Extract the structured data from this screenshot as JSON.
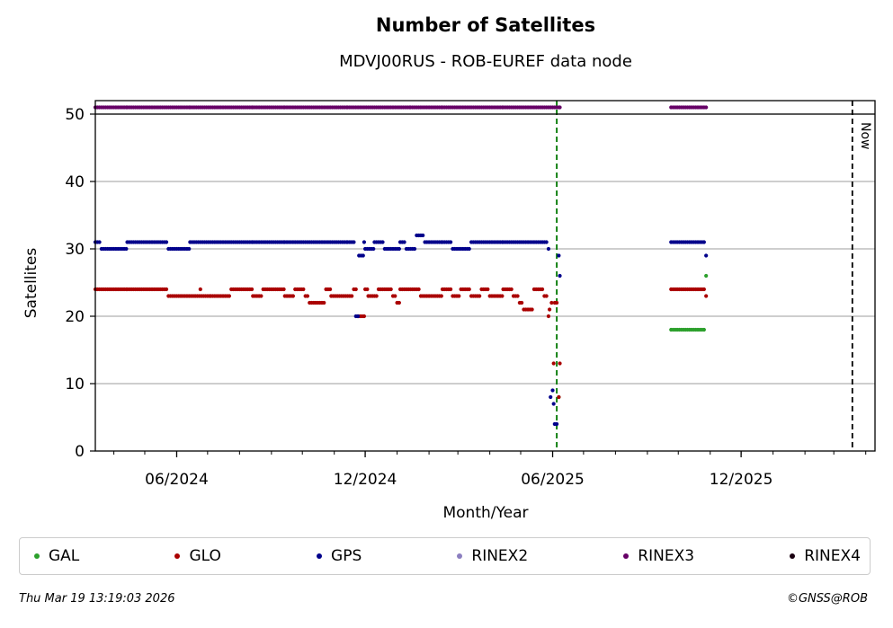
{
  "chart_data": {
    "type": "scatter",
    "title": "Number of Satellites",
    "subtitle": "MDVJ00RUS - ROB-EUREF data node",
    "xlabel": "Month/Year",
    "ylabel": "Satellites",
    "xlim": [
      "2024-03-14",
      "2026-04-10"
    ],
    "ylim": [
      0,
      52
    ],
    "yticks": [
      0,
      10,
      20,
      30,
      40,
      50
    ],
    "xticks": [
      {
        "date": "2024-06-01",
        "label": "06/2024"
      },
      {
        "date": "2024-12-01",
        "label": "12/2024"
      },
      {
        "date": "2025-06-01",
        "label": "06/2025"
      },
      {
        "date": "2025-12-01",
        "label": "12/2025"
      }
    ],
    "grid": "horizontal",
    "markers": [
      {
        "date": "2025-06-05",
        "label": "",
        "color": "#007700",
        "style": "dashed"
      },
      {
        "date": "2026-03-19",
        "label": "Now",
        "color": "#000000",
        "style": "dashed"
      }
    ],
    "series": [
      {
        "name": "GAL",
        "color": "#2ca02c",
        "points": [
          [
            "2025-06-07",
            8
          ],
          [
            "2025-09-24",
            18
          ],
          [
            "2025-10-28",
            26
          ]
        ]
      },
      {
        "name": "GLO",
        "color": "#aa0000",
        "points": [
          [
            "2024-03-14",
            24
          ],
          [
            "2024-04-14",
            24
          ],
          [
            "2024-05-14",
            24
          ],
          [
            "2024-05-24",
            23
          ],
          [
            "2024-06-24",
            24
          ],
          [
            "2024-06-25",
            23
          ],
          [
            "2024-07-04",
            23
          ],
          [
            "2024-07-24",
            24
          ],
          [
            "2024-08-14",
            23
          ],
          [
            "2024-08-24",
            24
          ],
          [
            "2024-09-14",
            23
          ],
          [
            "2024-09-24",
            24
          ],
          [
            "2024-10-04",
            23
          ],
          [
            "2024-10-08",
            22
          ],
          [
            "2024-10-24",
            24
          ],
          [
            "2024-10-29",
            23
          ],
          [
            "2024-11-18",
            23
          ],
          [
            "2024-11-20",
            24
          ],
          [
            "2024-11-24",
            20
          ],
          [
            "2024-12-01",
            24
          ],
          [
            "2024-12-04",
            23
          ],
          [
            "2024-12-14",
            24
          ],
          [
            "2024-12-28",
            23
          ],
          [
            "2025-01-01",
            22
          ],
          [
            "2025-01-04",
            24
          ],
          [
            "2025-01-24",
            23
          ],
          [
            "2025-02-14",
            24
          ],
          [
            "2025-02-24",
            23
          ],
          [
            "2025-03-04",
            24
          ],
          [
            "2025-03-14",
            23
          ],
          [
            "2025-03-24",
            24
          ],
          [
            "2025-04-01",
            23
          ],
          [
            "2025-04-14",
            24
          ],
          [
            "2025-04-24",
            23
          ],
          [
            "2025-04-30",
            22
          ],
          [
            "2025-05-04",
            21
          ],
          [
            "2025-05-14",
            24
          ],
          [
            "2025-05-24",
            23
          ],
          [
            "2025-05-28",
            20
          ],
          [
            "2025-05-29",
            21
          ],
          [
            "2025-05-31",
            22
          ],
          [
            "2025-06-02",
            13
          ],
          [
            "2025-06-03",
            22
          ],
          [
            "2025-06-07",
            8
          ],
          [
            "2025-06-08",
            13
          ],
          [
            "2025-09-24",
            24
          ],
          [
            "2025-10-28",
            23
          ]
        ]
      },
      {
        "name": "GPS",
        "color": "#00008b",
        "points": [
          [
            "2024-03-14",
            31
          ],
          [
            "2024-03-20",
            30
          ],
          [
            "2024-04-14",
            31
          ],
          [
            "2024-05-14",
            31
          ],
          [
            "2024-05-24",
            30
          ],
          [
            "2024-06-14",
            31
          ],
          [
            "2024-07-14",
            31
          ],
          [
            "2024-08-14",
            31
          ],
          [
            "2024-09-14",
            31
          ],
          [
            "2024-10-14",
            31
          ],
          [
            "2024-11-14",
            31
          ],
          [
            "2024-11-22",
            20
          ],
          [
            "2024-11-25",
            29
          ],
          [
            "2024-11-30",
            31
          ],
          [
            "2024-12-01",
            30
          ],
          [
            "2024-12-10",
            31
          ],
          [
            "2024-12-20",
            30
          ],
          [
            "2025-01-04",
            31
          ],
          [
            "2025-01-10",
            30
          ],
          [
            "2025-01-20",
            32
          ],
          [
            "2025-01-28",
            31
          ],
          [
            "2025-02-14",
            31
          ],
          [
            "2025-02-24",
            30
          ],
          [
            "2025-03-14",
            31
          ],
          [
            "2025-04-14",
            31
          ],
          [
            "2025-05-14",
            31
          ],
          [
            "2025-05-28",
            30
          ],
          [
            "2025-05-30",
            8
          ],
          [
            "2025-06-01",
            9
          ],
          [
            "2025-06-02",
            7
          ],
          [
            "2025-06-03",
            4
          ],
          [
            "2025-06-07",
            29
          ],
          [
            "2025-06-08",
            26
          ],
          [
            "2025-09-24",
            31
          ],
          [
            "2025-10-28",
            29
          ]
        ]
      },
      {
        "name": "RINEX2",
        "color": "#8c7fc0",
        "points": []
      },
      {
        "name": "RINEX3",
        "color": "#660066",
        "points": [
          [
            "2024-03-14",
            51
          ],
          [
            "2024-04-14",
            51
          ],
          [
            "2024-05-14",
            51
          ],
          [
            "2024-06-14",
            51
          ],
          [
            "2024-07-14",
            51
          ],
          [
            "2024-08-14",
            51
          ],
          [
            "2024-09-14",
            51
          ],
          [
            "2024-10-14",
            51
          ],
          [
            "2024-11-14",
            51
          ],
          [
            "2024-12-14",
            51
          ],
          [
            "2025-01-14",
            51
          ],
          [
            "2025-02-14",
            51
          ],
          [
            "2025-03-14",
            51
          ],
          [
            "2025-04-14",
            51
          ],
          [
            "2025-05-14",
            51
          ],
          [
            "2025-06-03",
            51
          ],
          [
            "2025-06-08",
            51
          ],
          [
            "2025-09-24",
            51
          ],
          [
            "2025-10-28",
            51
          ]
        ]
      },
      {
        "name": "RINEX4",
        "color": "#1a0010",
        "points": []
      }
    ]
  },
  "legend": [
    {
      "label": "GAL",
      "color": "#2ca02c"
    },
    {
      "label": "GLO",
      "color": "#aa0000"
    },
    {
      "label": "GPS",
      "color": "#00008b"
    },
    {
      "label": "RINEX2",
      "color": "#8c7fc0"
    },
    {
      "label": "RINEX3",
      "color": "#660066"
    },
    {
      "label": "RINEX4",
      "color": "#1a0010"
    }
  ],
  "footer": {
    "timestamp": "Thu Mar 19 13:19:03 2026",
    "credit": "©GNSS@ROB"
  }
}
